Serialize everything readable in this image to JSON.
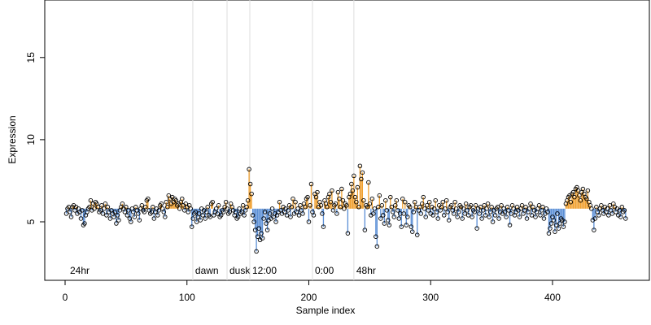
{
  "chart_data": {
    "type": "scatter",
    "xlabel": "Sample index",
    "ylabel": "Expression",
    "xlim": [
      -16.7,
      479.5
    ],
    "ylim": [
      1.44,
      18.5
    ],
    "xticks": [
      0,
      100,
      200,
      300,
      400
    ],
    "yticks": [
      5,
      10,
      15
    ],
    "baseline": 5.8,
    "above_color": "#f0a030",
    "below_color": "#5b8fd6",
    "point_color": "#000000",
    "annotations": [
      {
        "x": 2,
        "label": "24hr",
        "line": false
      },
      {
        "x": 104.8,
        "label": "dawn",
        "line": true
      },
      {
        "x": 132.9,
        "label": "dusk",
        "line": true
      },
      {
        "x": 151.6,
        "label": "12:00",
        "line": true
      },
      {
        "x": 203,
        "label": "0:00",
        "line": true
      },
      {
        "x": 237,
        "label": "48hr",
        "line": true
      }
    ],
    "annotation_y": 2.0,
    "x": [
      1,
      2,
      3,
      4,
      5,
      6,
      7,
      8,
      9,
      10,
      11,
      12,
      13,
      14,
      15,
      16,
      17,
      18,
      19,
      20,
      21,
      22,
      23,
      24,
      25,
      26,
      27,
      28,
      29,
      30,
      31,
      32,
      33,
      34,
      35,
      36,
      37,
      38,
      39,
      40,
      41,
      42,
      43,
      44,
      45,
      46,
      47,
      48,
      49,
      50,
      51,
      52,
      53,
      54,
      55,
      56,
      57,
      58,
      59,
      60,
      61,
      62,
      63,
      64,
      65,
      66,
      67,
      68,
      69,
      70,
      71,
      72,
      73,
      74,
      75,
      76,
      77,
      78,
      79,
      80,
      81,
      82,
      83,
      84,
      85,
      86,
      87,
      88,
      89,
      90,
      91,
      92,
      93,
      94,
      95,
      96,
      97,
      98,
      99,
      100,
      101,
      102,
      103,
      104,
      105,
      106,
      107,
      108,
      109,
      110,
      111,
      112,
      113,
      114,
      115,
      116,
      117,
      118,
      119,
      120,
      121,
      122,
      123,
      124,
      125,
      126,
      127,
      128,
      129,
      130,
      131,
      132,
      133,
      134,
      135,
      136,
      137,
      138,
      139,
      140,
      141,
      142,
      143,
      144,
      145,
      146,
      147,
      148,
      149,
      150,
      151,
      152,
      153,
      154,
      155,
      156,
      157,
      158,
      159,
      160,
      161,
      162,
      163,
      164,
      165,
      166,
      167,
      168,
      169,
      170,
      171,
      172,
      173,
      174,
      175,
      176,
      177,
      178,
      179,
      180,
      181,
      182,
      183,
      184,
      185,
      186,
      187,
      188,
      189,
      190,
      191,
      192,
      193,
      194,
      195,
      196,
      197,
      198,
      199,
      200,
      201,
      202,
      203,
      204,
      205,
      206,
      207,
      208,
      209,
      210,
      211,
      212,
      213,
      214,
      215,
      216,
      217,
      218,
      219,
      220,
      221,
      222,
      223,
      224,
      225,
      226,
      227,
      228,
      229,
      230,
      231,
      232,
      233,
      234,
      235,
      236,
      237,
      238,
      239,
      240,
      241,
      242,
      243,
      244,
      245,
      246,
      247,
      248,
      249,
      250,
      251,
      252,
      253,
      254,
      255,
      256,
      257,
      258,
      259,
      260,
      261,
      262,
      263,
      264,
      265,
      266,
      267,
      268,
      269,
      270,
      271,
      272,
      273,
      274,
      275,
      276,
      277,
      278,
      279,
      280,
      281,
      282,
      283,
      284,
      285,
      286,
      287,
      288,
      289,
      290,
      291,
      292,
      293,
      294,
      295,
      296,
      297,
      298,
      299,
      300,
      301,
      302,
      303,
      304,
      305,
      306,
      307,
      308,
      309,
      310,
      311,
      312,
      313,
      314,
      315,
      316,
      317,
      318,
      319,
      320,
      321,
      322,
      323,
      324,
      325,
      326,
      327,
      328,
      329,
      330,
      331,
      332,
      333,
      334,
      335,
      336,
      337,
      338,
      339,
      340,
      341,
      342,
      343,
      344,
      345,
      346,
      347,
      348,
      349,
      350,
      351,
      352,
      353,
      354,
      355,
      356,
      357,
      358,
      359,
      360,
      361,
      362,
      363,
      364,
      365,
      366,
      367,
      368,
      369,
      370,
      371,
      372,
      373,
      374,
      375,
      376,
      377,
      378,
      379,
      380,
      381,
      382,
      383,
      384,
      385,
      386,
      387,
      388,
      389,
      390,
      391,
      392,
      393,
      394,
      395,
      396,
      397,
      398,
      399,
      400,
      401,
      402,
      403,
      404,
      405,
      406,
      407,
      408,
      409,
      410,
      411,
      412,
      413,
      414,
      415,
      416,
      417,
      418,
      419,
      420,
      421,
      422,
      423,
      424,
      425,
      426,
      427,
      428,
      429,
      430,
      431,
      432,
      433,
      434,
      435,
      436,
      437,
      438,
      439,
      440,
      441,
      442,
      443,
      444,
      445,
      446,
      447,
      448,
      449,
      450,
      451,
      452,
      453,
      454,
      455,
      456,
      457,
      458,
      459,
      460
    ],
    "values": [
      5.5,
      5.8,
      5.9,
      5.6,
      5.3,
      5.9,
      6.0,
      5.7,
      5.9,
      5.5,
      5.8,
      5.6,
      5.2,
      5.7,
      4.8,
      4.9,
      5.4,
      5.6,
      5.8,
      5.9,
      6.3,
      5.7,
      6.1,
      5.8,
      6.2,
      6.1,
      5.9,
      5.6,
      5.7,
      6.0,
      5.5,
      5.8,
      6.1,
      5.4,
      5.9,
      5.6,
      5.2,
      5.7,
      5.5,
      5.3,
      5.6,
      4.9,
      5.4,
      5.1,
      5.7,
      5.9,
      6.1,
      5.8,
      5.6,
      5.9,
      5.4,
      5.7,
      5.2,
      5.0,
      5.8,
      5.6,
      5.3,
      5.9,
      5.7,
      5.5,
      5.1,
      5.8,
      6.0,
      5.7,
      5.6,
      5.9,
      6.3,
      6.4,
      5.7,
      5.5,
      5.6,
      5.9,
      5.2,
      5.6,
      5.8,
      5.4,
      5.7,
      6.0,
      6.1,
      5.8,
      5.6,
      5.3,
      6.2,
      5.9,
      6.6,
      6.4,
      6.1,
      6.5,
      6.2,
      6.4,
      6.3,
      6.0,
      6.1,
      5.8,
      6.2,
      6.4,
      6.0,
      5.7,
      6.1,
      5.9,
      5.6,
      6.0,
      5.8,
      4.7,
      5.2,
      5.5,
      5.6,
      5.0,
      5.3,
      5.5,
      5.1,
      5.8,
      5.4,
      5.7,
      5.2,
      5.6,
      5.9,
      5.4,
      5.3,
      6.1,
      6.2,
      5.4,
      5.6,
      5.8,
      5.5,
      6.0,
      5.3,
      5.4,
      5.7,
      5.6,
      5.9,
      6.2,
      5.8,
      5.5,
      5.6,
      6.1,
      5.9,
      5.7,
      5.4,
      5.6,
      5.2,
      5.3,
      5.8,
      5.5,
      5.6,
      6.0,
      5.4,
      5.7,
      5.9,
      6.3,
      8.2,
      7.3,
      6.7,
      5.4,
      5.0,
      4.5,
      3.2,
      4.1,
      4.6,
      3.9,
      4.3,
      4.0,
      5.2,
      5.6,
      4.9,
      4.5,
      5.1,
      5.5,
      5.2,
      5.8,
      5.3,
      5.5,
      5.0,
      5.4,
      5.6,
      6.2,
      5.7,
      5.5,
      5.9,
      5.6,
      5.8,
      5.4,
      5.7,
      6.0,
      5.3,
      5.9,
      6.4,
      5.5,
      6.2,
      5.6,
      5.8,
      5.4,
      6.0,
      5.7,
      5.5,
      6.1,
      5.9,
      6.4,
      6.5,
      5.0,
      6.0,
      7.3,
      5.6,
      5.4,
      6.7,
      6.5,
      6.8,
      5.9,
      6.2,
      6.0,
      5.5,
      4.7,
      6.3,
      6.1,
      5.9,
      6.5,
      6.7,
      6.2,
      6.9,
      5.7,
      6.0,
      6.1,
      5.5,
      6.8,
      6.4,
      5.9,
      7.0,
      6.3,
      5.8,
      6.1,
      6.0,
      4.3,
      6.5,
      6.7,
      7.3,
      6.9,
      7.8,
      6.5,
      6.2,
      7.1,
      5.9,
      8.4,
      7.6,
      8.0,
      6.3,
      4.5,
      6.0,
      5.9,
      7.4,
      6.1,
      5.4,
      6.4,
      5.5,
      5.8,
      4.1,
      3.5,
      5.9,
      6.6,
      5.2,
      6.0,
      5.4,
      4.9,
      6.3,
      5.7,
      5.1,
      4.8,
      6.5,
      5.9,
      5.6,
      5.3,
      6.0,
      6.3,
      5.7,
      5.2,
      5.5,
      4.7,
      6.4,
      5.5,
      6.2,
      4.8,
      5.3,
      6.0,
      5.9,
      4.7,
      4.4,
      5.6,
      6.2,
      5.9,
      4.2,
      5.7,
      5.9,
      5.5,
      6.1,
      6.5,
      5.8,
      5.3,
      6.0,
      5.7,
      6.2,
      5.5,
      5.9,
      5.4,
      5.8,
      6.3,
      5.6,
      5.2,
      6.0,
      5.7,
      5.9,
      6.2,
      5.4,
      5.8,
      6.3,
      5.6,
      5.1,
      5.9,
      6.0,
      5.7,
      5.5,
      6.2,
      5.8,
      5.3,
      5.6,
      6.0,
      5.9,
      5.2,
      5.8,
      5.5,
      6.1,
      5.7,
      5.4,
      5.9,
      6.0,
      5.3,
      5.7,
      5.6,
      6.0,
      4.6,
      5.8,
      5.5,
      5.9,
      5.2,
      5.7,
      6.0,
      5.4,
      5.8,
      6.1,
      5.3,
      5.6,
      5.9,
      5.0,
      5.7,
      5.4,
      5.8,
      5.9,
      5.2,
      5.6,
      6.0,
      5.5,
      5.8,
      5.6,
      5.3,
      5.9,
      5.7,
      4.8,
      5.5,
      6.0,
      5.8,
      5.4,
      5.6,
      5.9,
      5.7,
      5.3,
      5.8,
      6.0,
      5.5,
      5.7,
      5.9,
      5.2,
      5.6,
      5.8,
      6.1,
      5.4,
      5.9,
      5.7,
      5.3,
      5.6,
      5.8,
      6.0,
      5.4,
      5.7,
      5.9,
      5.2,
      5.5,
      5.8,
      5.6,
      4.3,
      4.6,
      4.9,
      5.3,
      5.1,
      4.4,
      4.8,
      5.5,
      4.6,
      4.9,
      5.2,
      5.1,
      4.7,
      5.0,
      6.1,
      6.3,
      6.5,
      6.6,
      6.2,
      6.7,
      6.8,
      6.5,
      7.0,
      7.1,
      6.9,
      6.6,
      6.3,
      6.8,
      7.0,
      6.7,
      6.5,
      6.4,
      6.9,
      6.2,
      6.0,
      5.8,
      5.1,
      4.5,
      5.2,
      5.9,
      5.6,
      5.4,
      5.8,
      6.0,
      5.7,
      5.5,
      5.9,
      5.6,
      5.8,
      5.4,
      6.0,
      5.7,
      5.5,
      6.1,
      5.9,
      5.6,
      5.8,
      5.4,
      5.7,
      5.3,
      5.9,
      5.6,
      5.7,
      5.2
    ]
  }
}
